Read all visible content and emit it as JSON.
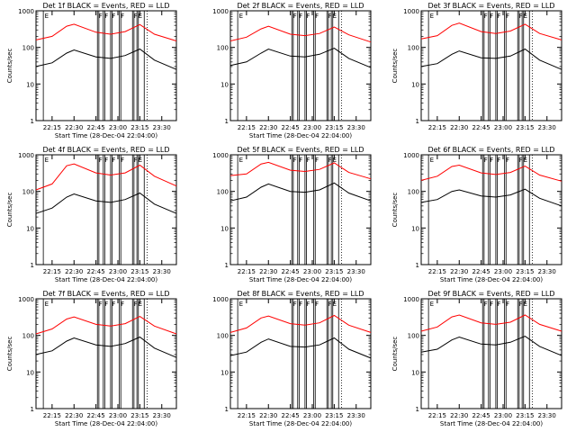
{
  "figure": {
    "background": "#ffffff",
    "series_colors": {
      "Events": "#000000",
      "LLD": "#ff0000"
    }
  },
  "chart_data": [
    {
      "type": "line",
      "title": "Det 1f BLACK = Events, RED = LLD",
      "xlabel": "Start Time (28-Dec-04 22:04:00)",
      "ylabel": "Counts/sec",
      "xlim": [
        "22:04",
        "23:40"
      ],
      "ylim": [
        1,
        1000
      ],
      "y_scale": "log",
      "x_tick_labels": [
        "22:15",
        "22:30",
        "22:45",
        "23:00",
        "23:15",
        "23:30"
      ],
      "y_tick_labels": [
        "1",
        "10",
        "100",
        "1000"
      ],
      "event_lines": [
        "22:09",
        "22:46",
        "22:47",
        "22:50",
        "22:51",
        "22:55",
        "22:56",
        "23:01",
        "23:02",
        "23:10",
        "23:11",
        "23:13",
        "23:14",
        "23:18"
      ],
      "region_labels": [
        "E",
        "F",
        "F",
        "F",
        "F",
        "F",
        "E"
      ],
      "dotted_lines": [
        "23:20"
      ],
      "x": [
        "22:04",
        "22:15",
        "22:25",
        "22:30",
        "22:45",
        "22:55",
        "23:05",
        "23:15",
        "23:25",
        "23:40"
      ],
      "series": [
        {
          "values": [
            30,
            38,
            70,
            85,
            55,
            50,
            60,
            90,
            45,
            25
          ]
        },
        {
          "values": [
            160,
            200,
            380,
            430,
            260,
            230,
            270,
            420,
            230,
            150
          ]
        }
      ]
    },
    {
      "type": "line",
      "title": "Det 2f BLACK = Events, RED = LLD",
      "xlabel": "Start Time (28-Dec-04 22:04:00)",
      "ylabel": "",
      "xlim": [
        "22:04",
        "23:40"
      ],
      "ylim": [
        1,
        1000
      ],
      "y_scale": "log",
      "x_tick_labels": [
        "22:15",
        "22:30",
        "22:45",
        "23:00",
        "23:15",
        "23:30"
      ],
      "y_tick_labels": [
        "1",
        "10",
        "100",
        "1000"
      ],
      "event_lines": [
        "22:09",
        "22:46",
        "22:47",
        "22:50",
        "22:51",
        "22:55",
        "22:56",
        "23:01",
        "23:02",
        "23:10",
        "23:11",
        "23:13",
        "23:14",
        "23:18"
      ],
      "region_labels": [
        "E",
        "F",
        "F",
        "F",
        "F",
        "F",
        "E"
      ],
      "dotted_lines": [
        "23:20"
      ],
      "x": [
        "22:04",
        "22:15",
        "22:25",
        "22:30",
        "22:45",
        "22:55",
        "23:05",
        "23:15",
        "23:25",
        "23:40"
      ],
      "series": [
        {
          "values": [
            32,
            40,
            70,
            90,
            58,
            55,
            65,
            95,
            50,
            28
          ]
        },
        {
          "values": [
            150,
            190,
            320,
            380,
            230,
            210,
            240,
            360,
            220,
            140
          ]
        }
      ]
    },
    {
      "type": "line",
      "title": "Det 3f BLACK = Events, RED = LLD",
      "xlabel": "",
      "ylabel": "Counts/sec",
      "xlim": [
        "22:04",
        "23:40"
      ],
      "ylim": [
        1,
        1000
      ],
      "y_scale": "log",
      "x_tick_labels": [
        "22:15",
        "22:30",
        "22:45",
        "23:00",
        "23:15",
        "23:30"
      ],
      "y_tick_labels": [
        "1",
        "10",
        "100",
        "1000"
      ],
      "event_lines": [
        "22:09",
        "22:46",
        "22:47",
        "22:50",
        "22:51",
        "22:55",
        "22:56",
        "23:01",
        "23:02",
        "23:10",
        "23:11",
        "23:13",
        "23:14",
        "23:18"
      ],
      "region_labels": [
        "E",
        "F",
        "F",
        "F",
        "F",
        "F",
        "E"
      ],
      "dotted_lines": [
        "23:20"
      ],
      "x": [
        "22:04",
        "22:15",
        "22:25",
        "22:30",
        "22:45",
        "22:55",
        "23:05",
        "23:15",
        "23:25",
        "23:40"
      ],
      "series": [
        {
          "values": [
            30,
            36,
            65,
            80,
            52,
            50,
            58,
            90,
            45,
            25
          ]
        },
        {
          "values": [
            170,
            210,
            400,
            460,
            270,
            240,
            280,
            430,
            240,
            160
          ]
        }
      ]
    },
    {
      "type": "line",
      "title": "Det 4f BLACK = Events, RED = LLD",
      "xlabel": "Start Time (28-Dec-04 22:04:00)",
      "ylabel": "Counts/sec",
      "xlim": [
        "22:04",
        "23:40"
      ],
      "ylim": [
        1,
        1000
      ],
      "y_scale": "log",
      "x_tick_labels": [
        "22:15",
        "22:30",
        "22:45",
        "23:00",
        "23:15",
        "23:30"
      ],
      "y_tick_labels": [
        "1",
        "10",
        "100",
        "1000"
      ],
      "event_lines": [
        "22:09",
        "22:46",
        "22:47",
        "22:50",
        "22:51",
        "22:55",
        "22:56",
        "23:01",
        "23:02",
        "23:10",
        "23:11",
        "23:13",
        "23:14",
        "23:18"
      ],
      "region_labels": [
        "E",
        "F",
        "F",
        "F",
        "F",
        "F",
        "E"
      ],
      "dotted_lines": [
        "23:20"
      ],
      "x": [
        "22:04",
        "22:15",
        "22:25",
        "22:30",
        "22:45",
        "22:55",
        "23:05",
        "23:15",
        "23:25",
        "23:40"
      ],
      "series": [
        {
          "values": [
            25,
            35,
            70,
            85,
            55,
            50,
            60,
            90,
            45,
            25
          ]
        },
        {
          "values": [
            110,
            160,
            500,
            560,
            320,
            280,
            320,
            520,
            260,
            140
          ]
        }
      ]
    },
    {
      "type": "line",
      "title": "Det 5f BLACK = Events, RED = LLD",
      "xlabel": "Start Time (28-Dec-04 22:04:00)",
      "ylabel": "",
      "xlim": [
        "22:04",
        "23:40"
      ],
      "ylim": [
        1,
        1000
      ],
      "y_scale": "log",
      "x_tick_labels": [
        "22:15",
        "22:30",
        "22:45",
        "23:00",
        "23:15",
        "23:30"
      ],
      "y_tick_labels": [
        "1",
        "10",
        "100",
        "1000"
      ],
      "event_lines": [
        "22:09",
        "22:46",
        "22:47",
        "22:50",
        "22:51",
        "22:55",
        "22:56",
        "23:01",
        "23:02",
        "23:10",
        "23:11",
        "23:13",
        "23:14",
        "23:18"
      ],
      "region_labels": [
        "E",
        "F",
        "F",
        "F",
        "F",
        "F",
        "E"
      ],
      "dotted_lines": [
        "23:20"
      ],
      "x": [
        "22:04",
        "22:15",
        "22:25",
        "22:30",
        "22:45",
        "22:55",
        "23:05",
        "23:15",
        "23:25",
        "23:40"
      ],
      "series": [
        {
          "values": [
            55,
            70,
            130,
            160,
            100,
            95,
            110,
            170,
            90,
            55
          ]
        },
        {
          "values": [
            270,
            300,
            560,
            620,
            380,
            350,
            400,
            600,
            330,
            220
          ]
        }
      ]
    },
    {
      "type": "line",
      "title": "Det 6f BLACK = Events, RED = LLD",
      "xlabel": "Start Time (28-Dec-04 22:04:00)",
      "ylabel": "Counts/sec",
      "xlim": [
        "22:04",
        "23:40"
      ],
      "ylim": [
        1,
        1000
      ],
      "y_scale": "log",
      "x_tick_labels": [
        "22:15",
        "22:30",
        "22:45",
        "23:00",
        "23:15",
        "23:30"
      ],
      "y_tick_labels": [
        "1",
        "10",
        "100",
        "1000"
      ],
      "event_lines": [
        "22:09",
        "22:46",
        "22:47",
        "22:50",
        "22:51",
        "22:55",
        "22:56",
        "23:01",
        "23:02",
        "23:10",
        "23:11",
        "23:13",
        "23:14",
        "23:18"
      ],
      "region_labels": [
        "E",
        "F",
        "F",
        "F",
        "F",
        "F",
        "E"
      ],
      "dotted_lines": [
        "23:20"
      ],
      "x": [
        "22:04",
        "22:15",
        "22:25",
        "22:30",
        "22:45",
        "22:55",
        "23:05",
        "23:15",
        "23:25",
        "23:40"
      ],
      "series": [
        {
          "values": [
            50,
            60,
            100,
            110,
            75,
            70,
            80,
            115,
            65,
            40
          ]
        },
        {
          "values": [
            200,
            260,
            480,
            520,
            320,
            290,
            330,
            490,
            280,
            190
          ]
        }
      ]
    },
    {
      "type": "line",
      "title": "Det 7f BLACK = Events, RED = LLD",
      "xlabel": "Start Time (28-Dec-04 22:04:00)",
      "ylabel": "Counts/sec",
      "xlim": [
        "22:04",
        "23:40"
      ],
      "ylim": [
        1,
        1000
      ],
      "y_scale": "log",
      "x_tick_labels": [
        "22:15",
        "22:30",
        "22:45",
        "23:00",
        "23:15",
        "23:30"
      ],
      "y_tick_labels": [
        "1",
        "10",
        "100",
        "1000"
      ],
      "event_lines": [
        "22:09",
        "22:46",
        "22:47",
        "22:50",
        "22:51",
        "22:55",
        "22:56",
        "23:01",
        "23:02",
        "23:10",
        "23:11",
        "23:13",
        "23:14",
        "23:18"
      ],
      "region_labels": [
        "E",
        "F",
        "F",
        "F",
        "F",
        "F",
        "E"
      ],
      "dotted_lines": [
        "23:20"
      ],
      "x": [
        "22:04",
        "22:15",
        "22:25",
        "22:30",
        "22:45",
        "22:55",
        "23:05",
        "23:15",
        "23:25",
        "23:40"
      ],
      "series": [
        {
          "values": [
            30,
            38,
            70,
            85,
            55,
            50,
            60,
            90,
            45,
            25
          ]
        },
        {
          "values": [
            110,
            150,
            280,
            320,
            200,
            180,
            210,
            330,
            180,
            110
          ]
        }
      ]
    },
    {
      "type": "line",
      "title": "Det 8f BLACK = Events, RED = LLD",
      "xlabel": "Start Time (28-Dec-04 22:04:00)",
      "ylabel": "",
      "xlim": [
        "22:04",
        "23:40"
      ],
      "ylim": [
        1,
        1000
      ],
      "y_scale": "log",
      "x_tick_labels": [
        "22:15",
        "22:30",
        "22:45",
        "23:00",
        "23:15",
        "23:30"
      ],
      "y_tick_labels": [
        "1",
        "10",
        "100",
        "1000"
      ],
      "event_lines": [
        "22:09",
        "22:46",
        "22:47",
        "22:50",
        "22:51",
        "22:55",
        "22:56",
        "23:01",
        "23:02",
        "23:10",
        "23:11",
        "23:13",
        "23:14",
        "23:18"
      ],
      "region_labels": [
        "E",
        "F",
        "F",
        "F",
        "F",
        "F",
        "E"
      ],
      "dotted_lines": [
        "23:20"
      ],
      "x": [
        "22:04",
        "22:15",
        "22:25",
        "22:30",
        "22:45",
        "22:55",
        "23:05",
        "23:15",
        "23:25",
        "23:40"
      ],
      "series": [
        {
          "values": [
            28,
            35,
            65,
            80,
            50,
            48,
            55,
            85,
            42,
            24
          ]
        },
        {
          "values": [
            120,
            160,
            300,
            340,
            210,
            190,
            220,
            350,
            190,
            120
          ]
        }
      ]
    },
    {
      "type": "line",
      "title": "Det 9f BLACK = Events, RED = LLD",
      "xlabel": "Start Time (28-Dec-04 22:04:00)",
      "ylabel": "Counts/sec",
      "xlim": [
        "22:04",
        "23:40"
      ],
      "ylim": [
        1,
        1000
      ],
      "y_scale": "log",
      "x_tick_labels": [
        "22:15",
        "22:30",
        "22:45",
        "23:00",
        "23:15",
        "23:30"
      ],
      "y_tick_labels": [
        "1",
        "10",
        "100",
        "1000"
      ],
      "event_lines": [
        "22:09",
        "22:46",
        "22:47",
        "22:50",
        "22:51",
        "22:55",
        "22:56",
        "23:01",
        "23:02",
        "23:10",
        "23:11",
        "23:13",
        "23:14",
        "23:18"
      ],
      "region_labels": [
        "E",
        "F",
        "F",
        "F",
        "F",
        "F",
        "E"
      ],
      "dotted_lines": [
        "23:20"
      ],
      "x": [
        "22:04",
        "22:15",
        "22:25",
        "22:30",
        "22:45",
        "22:55",
        "23:05",
        "23:15",
        "23:25",
        "23:40"
      ],
      "series": [
        {
          "values": [
            35,
            42,
            75,
            90,
            58,
            55,
            65,
            95,
            50,
            28
          ]
        },
        {
          "values": [
            130,
            170,
            320,
            360,
            220,
            200,
            230,
            360,
            200,
            130
          ]
        }
      ]
    }
  ]
}
